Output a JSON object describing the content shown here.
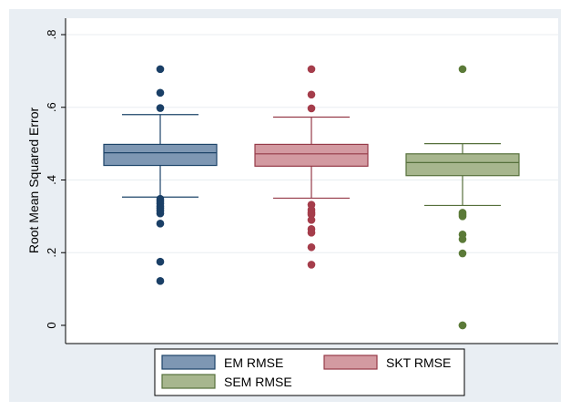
{
  "chart_data": {
    "type": "box",
    "ylabel": "Root Mean Squared Error",
    "ylim": [
      0,
      0.8
    ],
    "yticks": [
      0,
      0.2,
      0.4,
      0.6,
      0.8
    ],
    "ytick_labels": [
      "0",
      ".2",
      ".4",
      ".6",
      ".8"
    ],
    "grid": true,
    "legend_position": "bottom",
    "series": [
      {
        "name": "EM RMSE",
        "color": "#7e97b3",
        "stroke": "#1d4469",
        "outlier_color": "#1a3f66",
        "q1": 0.44,
        "median": 0.475,
        "q3": 0.498,
        "whisker_low": 0.353,
        "whisker_high": 0.58,
        "outliers": [
          0.705,
          0.64,
          0.598,
          0.348,
          0.342,
          0.335,
          0.328,
          0.322,
          0.315,
          0.308,
          0.28,
          0.175,
          0.122
        ]
      },
      {
        "name": "SKT RMSE",
        "color": "#d39aa1",
        "stroke": "#953a48",
        "outlier_color": "#a53d4b",
        "q1": 0.438,
        "median": 0.472,
        "q3": 0.498,
        "whisker_low": 0.35,
        "whisker_high": 0.573,
        "outliers": [
          0.705,
          0.635,
          0.597,
          0.332,
          0.318,
          0.31,
          0.305,
          0.29,
          0.265,
          0.255,
          0.215,
          0.167
        ]
      },
      {
        "name": "SEM RMSE",
        "color": "#a7b68e",
        "stroke": "#56703c",
        "outlier_color": "#5b7a38",
        "q1": 0.412,
        "median": 0.448,
        "q3": 0.472,
        "whisker_low": 0.33,
        "whisker_high": 0.5,
        "outliers": [
          0.705,
          0.31,
          0.305,
          0.3,
          0.25,
          0.237,
          0.198,
          0.0,
          0.0
        ]
      }
    ]
  }
}
